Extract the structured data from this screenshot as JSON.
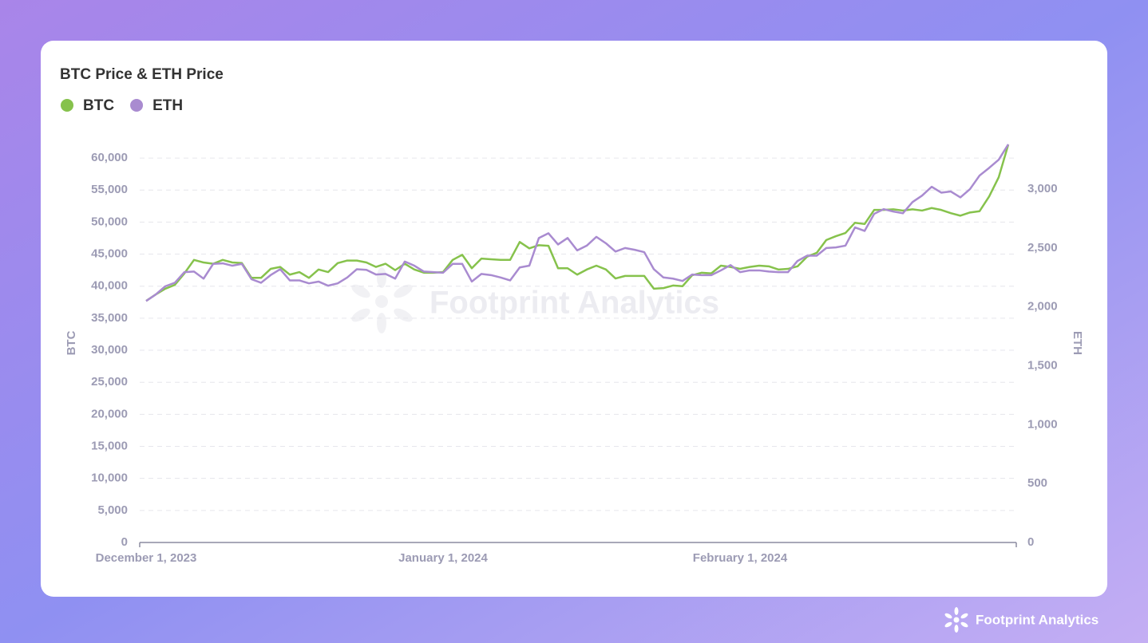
{
  "chart_data": {
    "type": "line",
    "title": "BTC Price & ETH Price",
    "y_label": "BTC",
    "y2_label": "ETH",
    "watermark": "Footprint Analytics",
    "x": [
      "2023-12-01",
      "2023-12-02",
      "2023-12-03",
      "2023-12-04",
      "2023-12-05",
      "2023-12-06",
      "2023-12-07",
      "2023-12-08",
      "2023-12-09",
      "2023-12-10",
      "2023-12-11",
      "2023-12-12",
      "2023-12-13",
      "2023-12-14",
      "2023-12-15",
      "2023-12-16",
      "2023-12-17",
      "2023-12-18",
      "2023-12-19",
      "2023-12-20",
      "2023-12-21",
      "2023-12-22",
      "2023-12-23",
      "2023-12-24",
      "2023-12-25",
      "2023-12-26",
      "2023-12-27",
      "2023-12-28",
      "2023-12-29",
      "2023-12-30",
      "2023-12-31",
      "2024-01-01",
      "2024-01-02",
      "2024-01-03",
      "2024-01-04",
      "2024-01-05",
      "2024-01-06",
      "2024-01-07",
      "2024-01-08",
      "2024-01-09",
      "2024-01-10",
      "2024-01-11",
      "2024-01-12",
      "2024-01-13",
      "2024-01-14",
      "2024-01-15",
      "2024-01-16",
      "2024-01-17",
      "2024-01-18",
      "2024-01-19",
      "2024-01-20",
      "2024-01-21",
      "2024-01-22",
      "2024-01-23",
      "2024-01-24",
      "2024-01-25",
      "2024-01-26",
      "2024-01-27",
      "2024-01-28",
      "2024-01-29",
      "2024-01-30",
      "2024-01-31",
      "2024-02-01",
      "2024-02-02",
      "2024-02-03",
      "2024-02-04",
      "2024-02-05",
      "2024-02-06",
      "2024-02-07",
      "2024-02-08",
      "2024-02-09",
      "2024-02-10",
      "2024-02-11",
      "2024-02-12",
      "2024-02-13",
      "2024-02-14",
      "2024-02-15",
      "2024-02-16",
      "2024-02-17",
      "2024-02-18",
      "2024-02-19",
      "2024-02-20",
      "2024-02-21",
      "2024-02-22",
      "2024-02-23",
      "2024-02-24",
      "2024-02-25",
      "2024-02-26",
      "2024-02-27",
      "2024-02-28",
      "2024-02-29"
    ],
    "series": [
      {
        "name": "BTC",
        "color": "#86c24c",
        "axis": "y",
        "values": [
          37700,
          38700,
          39600,
          40200,
          42000,
          44100,
          43700,
          43500,
          44100,
          43700,
          43600,
          41300,
          41300,
          42700,
          43000,
          41800,
          42200,
          41300,
          42600,
          42200,
          43600,
          44000,
          44000,
          43700,
          43000,
          43500,
          42500,
          43500,
          42600,
          42100,
          42100,
          42200,
          44100,
          44900,
          42800,
          44300,
          44200,
          44100,
          44100,
          46900,
          45900,
          46400,
          46300,
          42800,
          42800,
          41800,
          42600,
          43200,
          42600,
          41200,
          41600,
          41600,
          41600,
          39600,
          39700,
          40100,
          40000,
          41700,
          42100,
          42000,
          43200,
          43000,
          42700,
          43000,
          43200,
          43100,
          42600,
          42700,
          43100,
          44600,
          45200,
          47200,
          47800,
          48300,
          49900,
          49700,
          51900,
          51900,
          52000,
          51800,
          52000,
          51800,
          52200,
          51900,
          51400,
          51000,
          51500,
          51700,
          54000,
          57000,
          62100
        ]
      },
      {
        "name": "ETH",
        "color": "#a98bd0",
        "axis": "y2",
        "values": [
          2050,
          2105,
          2175,
          2205,
          2295,
          2300,
          2240,
          2365,
          2370,
          2350,
          2365,
          2235,
          2205,
          2270,
          2320,
          2225,
          2225,
          2200,
          2215,
          2180,
          2200,
          2250,
          2320,
          2315,
          2275,
          2280,
          2240,
          2385,
          2350,
          2300,
          2295,
          2290,
          2365,
          2365,
          2215,
          2280,
          2270,
          2250,
          2225,
          2335,
          2350,
          2585,
          2625,
          2530,
          2585,
          2480,
          2520,
          2595,
          2540,
          2470,
          2500,
          2485,
          2465,
          2320,
          2250,
          2240,
          2220,
          2275,
          2270,
          2270,
          2310,
          2355,
          2295,
          2310,
          2310,
          2300,
          2295,
          2295,
          2390,
          2435,
          2435,
          2500,
          2505,
          2520,
          2675,
          2645,
          2790,
          2830,
          2810,
          2795,
          2890,
          2945,
          3020,
          2970,
          2980,
          2930,
          3000,
          3115,
          3180,
          3250,
          3380
        ]
      }
    ],
    "xlim": [
      "2023-12-01",
      "2024-02-29"
    ],
    "xticks": [
      {
        "value": "2023-12-01",
        "label": "December 1, 2023"
      },
      {
        "value": "2024-01-01",
        "label": "January 1, 2024"
      },
      {
        "value": "2024-02-01",
        "label": "February 1, 2024"
      }
    ],
    "ylim": [
      0,
      62500
    ],
    "yticks": [
      0,
      {
        "value": 5000,
        "label": "5,000"
      },
      {
        "value": 10000,
        "label": "10,000"
      },
      {
        "value": 15000,
        "label": "15,000"
      },
      {
        "value": 20000,
        "label": "20,000"
      },
      {
        "value": 25000,
        "label": "25,000"
      },
      {
        "value": 30000,
        "label": "30,000"
      },
      {
        "value": 35000,
        "label": "35,000"
      },
      {
        "value": 40000,
        "label": "40,000"
      },
      {
        "value": 45000,
        "label": "45,000"
      },
      {
        "value": 50000,
        "label": "50,000"
      },
      {
        "value": 55000,
        "label": "55,000"
      },
      {
        "value": 60000,
        "label": "60,000"
      }
    ],
    "y2lim": [
      0,
      3400
    ],
    "y2ticks": [
      0,
      500,
      {
        "value": 1000,
        "label": "1,000"
      },
      {
        "value": 1500,
        "label": "1,500"
      },
      {
        "value": 2000,
        "label": "2,000"
      },
      {
        "value": 2500,
        "label": "2,500"
      },
      {
        "value": 3000,
        "label": "3,000"
      }
    ],
    "grid": true
  },
  "footer": {
    "brand": "Footprint Analytics"
  }
}
